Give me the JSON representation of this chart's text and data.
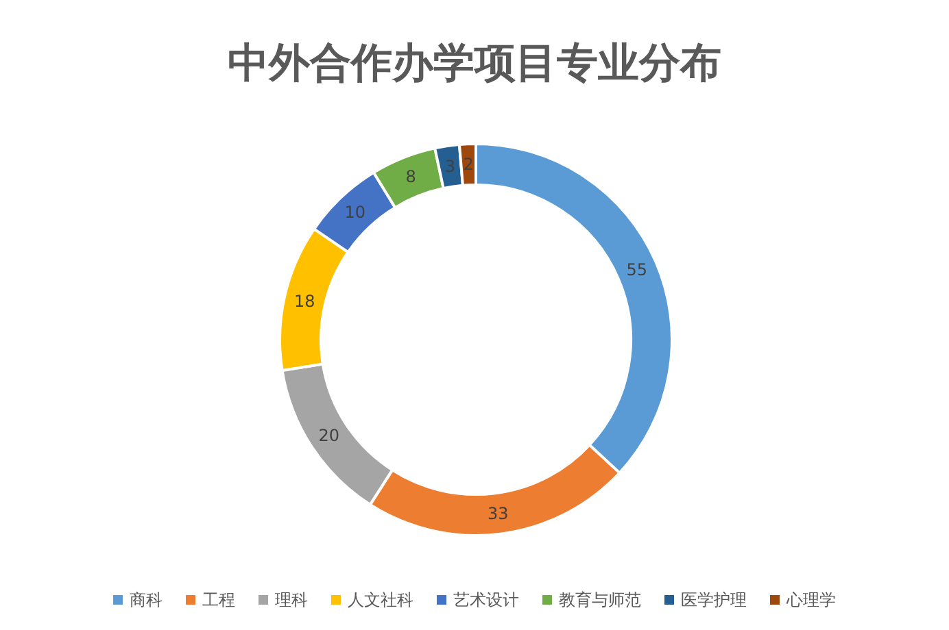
{
  "chart_data": {
    "type": "donut",
    "title": "中外合作办学项目专业分布",
    "categories": [
      "商科",
      "工程",
      "理科",
      "人文社科",
      "艺术设计",
      "教育与师范",
      "医学护理",
      "心理学"
    ],
    "values": [
      55,
      33,
      20,
      18,
      10,
      8,
      3,
      2
    ],
    "colors": [
      "#5b9bd5",
      "#ed7d31",
      "#a5a5a5",
      "#ffc000",
      "#4472c4",
      "#70ad47",
      "#255e91",
      "#9e480e"
    ],
    "data_labels": true,
    "legend": "bottom"
  }
}
